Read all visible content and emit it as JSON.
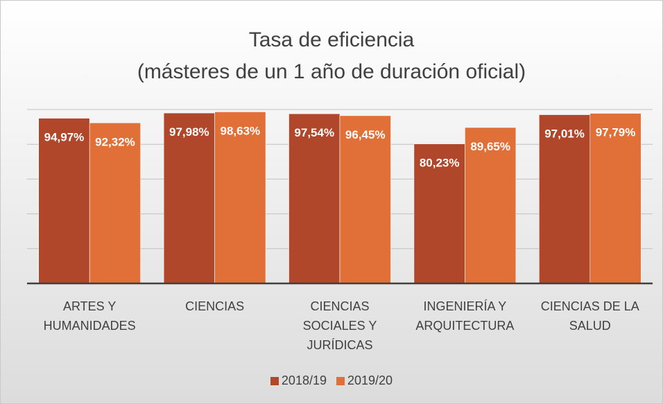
{
  "chart_data": {
    "type": "bar",
    "title": "Tasa de eficiencia",
    "subtitle": "(másteres de un 1 año de duración oficial)",
    "categories": [
      "ARTES Y HUMANIDADES",
      "CIENCIAS",
      "CIENCIAS SOCIALES Y JURÍDICAS",
      "INGENIERÍA Y ARQUITECTURA",
      "CIENCIAS DE LA SALUD"
    ],
    "series": [
      {
        "name": "2018/19",
        "color": "#b0472b",
        "values": [
          94.97,
          97.98,
          97.54,
          80.23,
          97.01
        ],
        "value_labels": [
          "94,97%",
          "97,98%",
          "97,54%",
          "80,23%",
          "97,01%"
        ]
      },
      {
        "name": "2019/20",
        "color": "#e07038",
        "values": [
          92.32,
          98.63,
          96.45,
          89.65,
          97.79
        ],
        "value_labels": [
          "92,32%",
          "98,63%",
          "96,45%",
          "89,65%",
          "97,79%"
        ]
      }
    ],
    "ylim": [
      0,
      100
    ],
    "yticks": [
      0,
      20,
      40,
      60,
      80,
      100
    ],
    "grid": true,
    "legend": "bottom"
  }
}
